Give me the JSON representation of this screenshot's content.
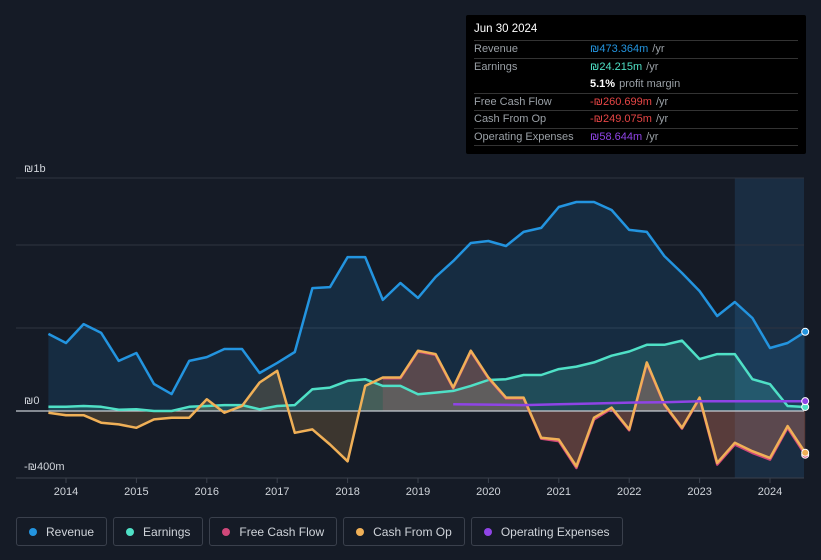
{
  "tooltip": {
    "date": "Jun 30 2024",
    "rows": [
      {
        "label": "Revenue",
        "value": "₪473.364m",
        "unit": "/yr",
        "color": "#2394df"
      },
      {
        "label": "Earnings",
        "value": "₪24.215m",
        "unit": "/yr",
        "color": "#4fe0c6"
      },
      {
        "label": "",
        "value": "5.1%",
        "unit": "profit margin",
        "color": "#ffffff"
      },
      {
        "label": "Free Cash Flow",
        "value": "-₪260.699m",
        "unit": "/yr",
        "color": "#e64545"
      },
      {
        "label": "Cash From Op",
        "value": "-₪249.075m",
        "unit": "/yr",
        "color": "#e64545"
      },
      {
        "label": "Operating Expenses",
        "value": "₪58.644m",
        "unit": "/yr",
        "color": "#8f44e6"
      }
    ]
  },
  "legend": [
    {
      "label": "Revenue",
      "color": "#2394df"
    },
    {
      "label": "Earnings",
      "color": "#4fe0c6"
    },
    {
      "label": "Free Cash Flow",
      "color": "#d0487a"
    },
    {
      "label": "Cash From Op",
      "color": "#f0b057"
    },
    {
      "label": "Operating Expenses",
      "color": "#8f44e6"
    }
  ],
  "chart_data": {
    "type": "line",
    "ylabels": [
      "₪1b",
      "₪0",
      "-₪400m"
    ],
    "ylim": [
      -400,
      1390
    ],
    "xlim": [
      2013.25,
      2024.5
    ],
    "xticks": [
      "2014",
      "2015",
      "2016",
      "2017",
      "2018",
      "2019",
      "2020",
      "2021",
      "2022",
      "2023",
      "2024"
    ],
    "highlight_from": 2023.5,
    "series": [
      {
        "name": "Revenue",
        "color": "#2394df",
        "fill": true,
        "x": [
          2013.75,
          2014,
          2014.25,
          2014.5,
          2014.75,
          2015,
          2015.25,
          2015.5,
          2015.75,
          2016,
          2016.25,
          2016.5,
          2016.75,
          2017,
          2017.25,
          2017.5,
          2017.75,
          2018,
          2018.25,
          2018.5,
          2018.75,
          2019,
          2019.25,
          2019.5,
          2019.75,
          2020,
          2020.25,
          2020.5,
          2020.75,
          2021,
          2021.25,
          2021.5,
          2021.75,
          2022,
          2022.25,
          2022.5,
          2022.75,
          2023,
          2023.25,
          2023.5,
          2023.75,
          2024,
          2024.25,
          2024.5
        ],
        "y": [
          460,
          406,
          519,
          466,
          299,
          346,
          161,
          101,
          299,
          322,
          370,
          370,
          227,
          287,
          352,
          734,
          740,
          919,
          919,
          663,
          764,
          675,
          800,
          895,
          1003,
          1015,
          985,
          1069,
          1093,
          1218,
          1248,
          1248,
          1200,
          1081,
          1069,
          925,
          824,
          716,
          567,
          651,
          555,
          376,
          406,
          473
        ]
      },
      {
        "name": "Earnings",
        "color": "#4fe0c6",
        "fill": true,
        "x": [
          2013.75,
          2014,
          2014.25,
          2014.5,
          2014.75,
          2015,
          2015.25,
          2015.5,
          2015.75,
          2016,
          2016.25,
          2016.5,
          2016.75,
          2017,
          2017.25,
          2017.5,
          2017.75,
          2018,
          2018.25,
          2018.5,
          2018.75,
          2019,
          2019.25,
          2019.5,
          2019.75,
          2020,
          2020.25,
          2020.5,
          2020.75,
          2021,
          2021.25,
          2021.5,
          2021.75,
          2022,
          2022.25,
          2022.5,
          2022.75,
          2023,
          2023.25,
          2023.5,
          2023.75,
          2024,
          2024.25,
          2024.5
        ],
        "y": [
          25,
          25,
          30,
          25,
          8,
          10,
          0,
          0,
          25,
          30,
          35,
          35,
          10,
          30,
          35,
          130,
          140,
          180,
          190,
          150,
          150,
          100,
          110,
          120,
          150,
          185,
          190,
          215,
          215,
          250,
          265,
          290,
          330,
          355,
          395,
          395,
          420,
          310,
          340,
          340,
          190,
          160,
          30,
          24
        ]
      },
      {
        "name": "Free Cash Flow",
        "color": "#d0487a",
        "fill": true,
        "x": [
          2018.5,
          2018.75,
          2019,
          2019.25,
          2019.5,
          2019.75,
          2020,
          2020.25,
          2020.5,
          2020.75,
          2021,
          2021.25,
          2021.5,
          2021.75,
          2022,
          2022.25,
          2022.5,
          2022.75,
          2023,
          2023.25,
          2023.5,
          2023.75,
          2024,
          2024.25,
          2024.5
        ],
        "y": [
          195,
          195,
          355,
          335,
          135,
          355,
          195,
          75,
          75,
          -165,
          -180,
          -340,
          -50,
          15,
          -115,
          285,
          35,
          -105,
          75,
          -320,
          -200,
          -250,
          -290,
          -100,
          -261
        ]
      },
      {
        "name": "Cash From Op",
        "color": "#f0b057",
        "fill": true,
        "x": [
          2013.75,
          2014,
          2014.25,
          2014.5,
          2014.75,
          2015,
          2015.25,
          2015.5,
          2015.75,
          2016,
          2016.25,
          2016.5,
          2016.75,
          2017,
          2017.25,
          2017.5,
          2017.75,
          2018,
          2018.25,
          2018.5,
          2018.75,
          2019,
          2019.25,
          2019.5,
          2019.75,
          2020,
          2020.25,
          2020.5,
          2020.75,
          2021,
          2021.25,
          2021.5,
          2021.75,
          2022,
          2022.25,
          2022.5,
          2022.75,
          2023,
          2023.25,
          2023.5,
          2023.75,
          2024,
          2024.25,
          2024.5
        ],
        "y": [
          -10,
          -25,
          -25,
          -70,
          -80,
          -100,
          -50,
          -40,
          -40,
          70,
          -10,
          30,
          170,
          240,
          -130,
          -110,
          -200,
          -300,
          150,
          200,
          200,
          360,
          340,
          140,
          360,
          200,
          80,
          80,
          -160,
          -170,
          -330,
          -40,
          20,
          -110,
          290,
          40,
          -100,
          80,
          -310,
          -190,
          -240,
          -280,
          -90,
          -249
        ]
      },
      {
        "name": "Operating Expenses",
        "color": "#8f44e6",
        "fill": false,
        "x": [
          2019.5,
          2020,
          2020.5,
          2021,
          2021.5,
          2022,
          2022.5,
          2023,
          2023.5,
          2024,
          2024.5
        ],
        "y": [
          40,
          38,
          35,
          40,
          45,
          50,
          52,
          58,
          58,
          58,
          58.6
        ]
      }
    ]
  }
}
